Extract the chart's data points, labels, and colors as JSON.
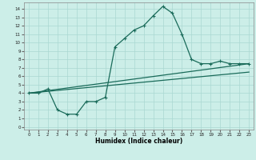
{
  "xlabel": "Humidex (Indice chaleur)",
  "ylabel": "",
  "background_color": "#cceee8",
  "grid_color": "#aad8d2",
  "line_color": "#1a6b5a",
  "x_ticks": [
    0,
    1,
    2,
    3,
    4,
    5,
    6,
    7,
    8,
    9,
    10,
    11,
    12,
    13,
    14,
    15,
    16,
    17,
    18,
    19,
    20,
    21,
    22,
    23
  ],
  "y_ticks": [
    0,
    1,
    2,
    3,
    4,
    5,
    6,
    7,
    8,
    9,
    10,
    11,
    12,
    13,
    14
  ],
  "ylim": [
    -0.3,
    14.8
  ],
  "xlim": [
    -0.5,
    23.5
  ],
  "line1_x": [
    0,
    1,
    2,
    3,
    4,
    5,
    6,
    7,
    8,
    9,
    10,
    11,
    12,
    13,
    14,
    15,
    16,
    17,
    18,
    19,
    20,
    21,
    22,
    23
  ],
  "line1_y": [
    4.0,
    4.0,
    4.5,
    2.0,
    1.5,
    1.5,
    3.0,
    3.0,
    3.5,
    9.5,
    10.5,
    11.5,
    12.0,
    13.2,
    14.3,
    13.5,
    11.0,
    8.0,
    7.5,
    7.5,
    7.8,
    7.5,
    7.5,
    7.5
  ],
  "line2_x": [
    0,
    23
  ],
  "line2_y": [
    4.0,
    7.5
  ],
  "line3_x": [
    0,
    23
  ],
  "line3_y": [
    4.0,
    6.5
  ]
}
